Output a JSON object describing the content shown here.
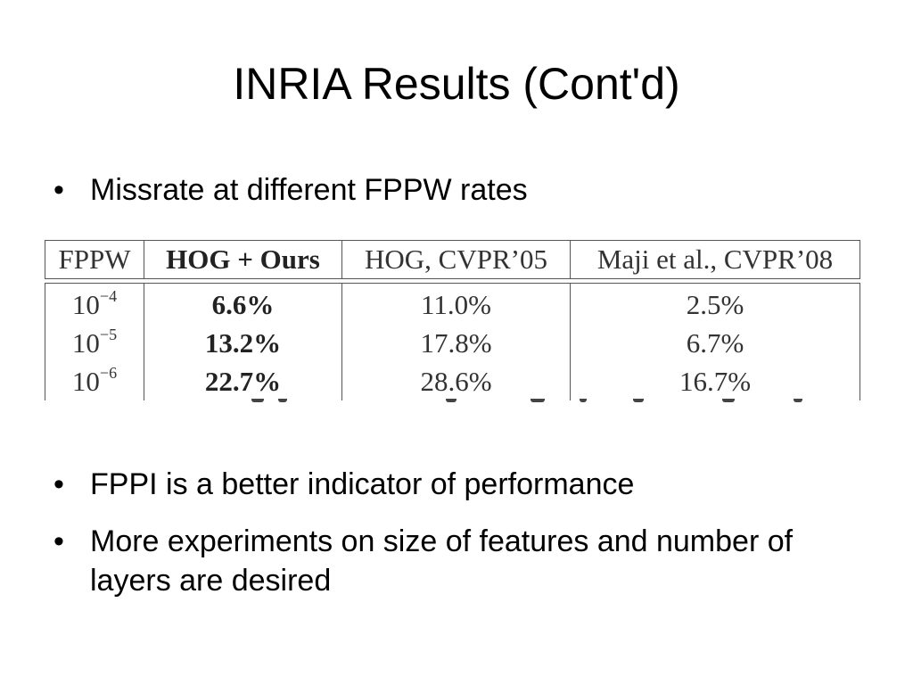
{
  "slide": {
    "title": "INRIA Results (Cont'd)",
    "bullets": [
      {
        "symbol": "•",
        "text": "Missrate at different FPPW rates"
      },
      {
        "symbol": "•",
        "text": "FPPI is a better indicator of performance"
      },
      {
        "symbol": "•",
        "text": "More experiments on size of features and number of layers are desired"
      }
    ]
  },
  "table": {
    "headers": [
      "FPPW",
      "HOG + Ours",
      "HOG, CVPR’05",
      "Maji et al., CVPR’08"
    ],
    "rows": [
      {
        "base": "10",
        "exp": "−4",
        "values": [
          "6.6%",
          "11.0%",
          "2.5%"
        ]
      },
      {
        "base": "10",
        "exp": "−5",
        "values": [
          "13.2%",
          "17.8%",
          "6.7%"
        ]
      },
      {
        "base": "10",
        "exp": "−6",
        "values": [
          "22.7%",
          "28.6%",
          "16.7%"
        ]
      }
    ]
  }
}
